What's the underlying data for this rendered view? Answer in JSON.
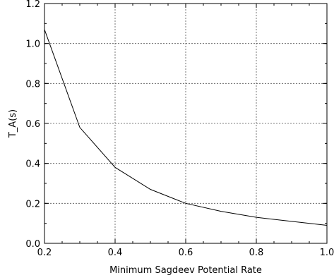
{
  "chart_data": {
    "type": "line",
    "xlabel": "Minimum Sagdeev Potential Rate",
    "ylabel": "T_A(s)",
    "xlim": [
      0.2,
      1.0
    ],
    "ylim": [
      0.0,
      1.2
    ],
    "xticks": [
      "0.2",
      "0.4",
      "0.6",
      "0.8",
      "1.0"
    ],
    "yticks": [
      "0.0",
      "0.2",
      "0.4",
      "0.6",
      "0.8",
      "1.0",
      "1.2"
    ],
    "grid": true,
    "series": [
      {
        "x": [
          0.2,
          0.3,
          0.4,
          0.5,
          0.6,
          0.7,
          0.8,
          0.9,
          1.0
        ],
        "y": [
          1.07,
          0.58,
          0.38,
          0.27,
          0.2,
          0.16,
          0.13,
          0.11,
          0.09
        ],
        "color": "#000000"
      }
    ]
  }
}
